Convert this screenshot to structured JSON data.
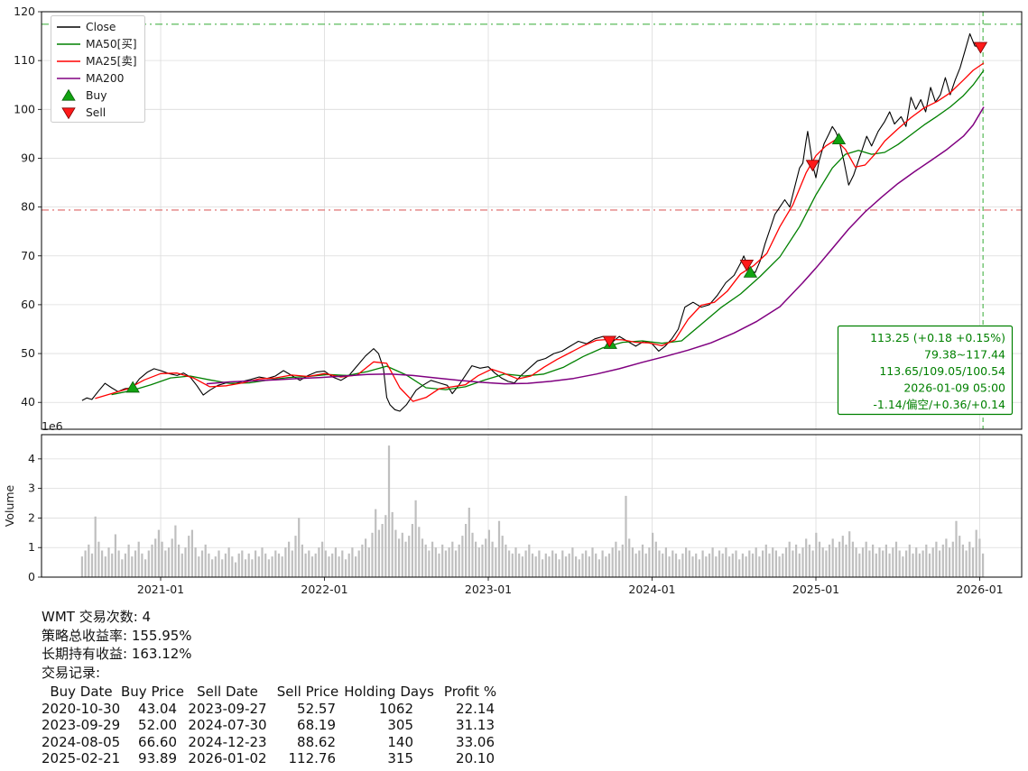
{
  "chart_data": [
    {
      "type": "line",
      "title": "",
      "x_axis": {
        "ticks": [
          2021,
          2022,
          2023,
          2024,
          2025,
          2026
        ],
        "tick_labels": [
          "2021-01",
          "2022-01",
          "2023-01",
          "2024-01",
          "2025-01",
          "2026-01"
        ],
        "range": [
          2020.27,
          2026.26
        ]
      },
      "y_axis": {
        "ticks": [
          40,
          50,
          60,
          70,
          80,
          90,
          100,
          110,
          120
        ],
        "range": [
          34.5,
          120
        ]
      },
      "grid": true,
      "series": [
        {
          "name": "Close",
          "color": "#000000",
          "width": 1.1,
          "x": [
            2020.52,
            2020.55,
            2020.58,
            2020.62,
            2020.66,
            2020.7,
            2020.74,
            2020.78,
            2020.83,
            2020.87,
            2020.92,
            2020.96,
            2021.0,
            2021.05,
            2021.1,
            2021.14,
            2021.18,
            2021.22,
            2021.26,
            2021.3,
            2021.35,
            2021.4,
            2021.45,
            2021.5,
            2021.55,
            2021.6,
            2021.65,
            2021.7,
            2021.75,
            2021.8,
            2021.85,
            2021.9,
            2021.95,
            2022.0,
            2022.05,
            2022.1,
            2022.15,
            2022.2,
            2022.25,
            2022.3,
            2022.33,
            2022.36,
            2022.38,
            2022.4,
            2022.43,
            2022.46,
            2022.5,
            2022.53,
            2022.56,
            2022.6,
            2022.65,
            2022.7,
            2022.75,
            2022.78,
            2022.82,
            2022.86,
            2022.9,
            2022.95,
            2023.0,
            2023.04,
            2023.08,
            2023.12,
            2023.16,
            2023.2,
            2023.25,
            2023.3,
            2023.35,
            2023.4,
            2023.45,
            2023.5,
            2023.55,
            2023.6,
            2023.65,
            2023.7,
            2023.74,
            2023.745,
            2023.8,
            2023.85,
            2023.9,
            2023.95,
            2024.0,
            2024.04,
            2024.08,
            2024.12,
            2024.16,
            2024.2,
            2024.25,
            2024.3,
            2024.35,
            2024.4,
            2024.45,
            2024.5,
            2024.54,
            2024.56,
            2024.58,
            2024.6,
            2024.63,
            2024.66,
            2024.69,
            2024.72,
            2024.75,
            2024.78,
            2024.81,
            2024.84,
            2024.87,
            2024.9,
            2024.92,
            2024.94,
            2024.95,
            2024.97,
            2024.98,
            2025.0,
            2025.02,
            2025.05,
            2025.08,
            2025.1,
            2025.12,
            2025.14,
            2025.17,
            2025.2,
            2025.23,
            2025.27,
            2025.31,
            2025.34,
            2025.38,
            2025.42,
            2025.45,
            2025.48,
            2025.52,
            2025.55,
            2025.58,
            2025.61,
            2025.64,
            2025.67,
            2025.7,
            2025.73,
            2025.76,
            2025.79,
            2025.82,
            2025.85,
            2025.88,
            2025.91,
            2025.94,
            2025.97,
            2026.0,
            2026.025
          ],
          "y": [
            40.4,
            40.9,
            40.6,
            42.3,
            43.9,
            43.0,
            42.2,
            42.8,
            43.0,
            44.8,
            46.2,
            46.9,
            46.5,
            45.9,
            45.5,
            46.0,
            45.2,
            43.5,
            41.5,
            42.5,
            43.5,
            44.0,
            43.8,
            44.3,
            44.7,
            45.2,
            44.9,
            45.4,
            46.5,
            45.5,
            44.5,
            45.5,
            46.2,
            46.4,
            45.2,
            44.5,
            45.5,
            47.5,
            49.5,
            51.0,
            50.0,
            47.0,
            41.0,
            39.5,
            38.5,
            38.2,
            39.5,
            41.0,
            42.5,
            43.5,
            44.5,
            44.0,
            43.5,
            41.8,
            43.5,
            45.5,
            47.5,
            47.0,
            47.3,
            46.0,
            45.0,
            44.3,
            44.0,
            45.5,
            47.0,
            48.5,
            49.0,
            50.0,
            50.5,
            51.5,
            52.5,
            52.0,
            53.0,
            53.5,
            52.6,
            52.0,
            53.5,
            52.5,
            51.5,
            52.5,
            52.0,
            50.5,
            51.5,
            53.0,
            55.0,
            59.5,
            60.5,
            59.5,
            60.0,
            62.0,
            64.5,
            66.0,
            68.5,
            70.0,
            68.2,
            67.0,
            66.6,
            69.0,
            72.5,
            75.5,
            78.5,
            80.0,
            81.5,
            80.0,
            84.0,
            88.0,
            89.0,
            93.5,
            95.5,
            91.0,
            88.6,
            86.0,
            89.5,
            93.0,
            95.0,
            96.5,
            95.5,
            93.89,
            89.5,
            84.5,
            86.5,
            90.5,
            94.5,
            92.5,
            95.5,
            97.5,
            99.5,
            97.0,
            98.5,
            96.5,
            102.5,
            100.0,
            102.0,
            99.5,
            104.5,
            101.5,
            103.0,
            106.5,
            103.0,
            106.0,
            108.5,
            112.0,
            115.5,
            113.0,
            112.8,
            113.25
          ]
        },
        {
          "name": "MA50[买]",
          "color": "#008000",
          "width": 1.3,
          "x": [
            2020.7,
            2020.82,
            2020.94,
            2021.06,
            2021.18,
            2021.3,
            2021.42,
            2021.54,
            2021.66,
            2021.78,
            2021.9,
            2022.02,
            2022.14,
            2022.26,
            2022.38,
            2022.5,
            2022.62,
            2022.74,
            2022.86,
            2022.98,
            2023.1,
            2023.22,
            2023.34,
            2023.46,
            2023.58,
            2023.7,
            2023.82,
            2023.94,
            2024.06,
            2024.18,
            2024.3,
            2024.42,
            2024.54,
            2024.66,
            2024.78,
            2024.9,
            2025.0,
            2025.1,
            2025.18,
            2025.26,
            2025.34,
            2025.42,
            2025.5,
            2025.58,
            2025.66,
            2025.74,
            2025.82,
            2025.9,
            2025.96,
            2026.025
          ],
          "y": [
            41.6,
            42.4,
            43.6,
            45.0,
            45.4,
            44.6,
            43.9,
            44.0,
            44.6,
            45.1,
            45.3,
            45.7,
            45.5,
            46.3,
            47.4,
            45.6,
            43.0,
            42.6,
            43.2,
            44.6,
            45.8,
            45.4,
            45.8,
            47.2,
            49.4,
            51.2,
            52.3,
            52.6,
            52.1,
            52.6,
            56.0,
            59.4,
            62.2,
            65.8,
            69.8,
            76.0,
            82.5,
            88.0,
            90.8,
            91.6,
            90.8,
            91.2,
            92.8,
            94.8,
            96.8,
            98.6,
            100.5,
            102.8,
            105.0,
            108.0
          ]
        },
        {
          "name": "MA25[卖]",
          "color": "#ff0000",
          "width": 1.3,
          "x": [
            2020.6,
            2020.7,
            2020.8,
            2020.9,
            2021.0,
            2021.1,
            2021.2,
            2021.3,
            2021.4,
            2021.5,
            2021.6,
            2021.7,
            2021.8,
            2021.9,
            2022.0,
            2022.1,
            2022.2,
            2022.3,
            2022.38,
            2022.46,
            2022.54,
            2022.62,
            2022.7,
            2022.78,
            2022.86,
            2022.94,
            2023.02,
            2023.1,
            2023.18,
            2023.26,
            2023.34,
            2023.42,
            2023.5,
            2023.58,
            2023.66,
            2023.74,
            2023.82,
            2023.9,
            2023.98,
            2024.06,
            2024.14,
            2024.22,
            2024.3,
            2024.38,
            2024.46,
            2024.54,
            2024.62,
            2024.7,
            2024.78,
            2024.86,
            2024.94,
            2025.0,
            2025.06,
            2025.12,
            2025.18,
            2025.24,
            2025.3,
            2025.36,
            2025.42,
            2025.5,
            2025.58,
            2025.66,
            2025.74,
            2025.82,
            2025.9,
            2025.96,
            2026.025
          ],
          "y": [
            40.8,
            41.8,
            42.8,
            44.6,
            45.9,
            46.0,
            45.0,
            43.2,
            43.4,
            44.0,
            44.8,
            45.0,
            45.6,
            45.3,
            45.9,
            45.2,
            45.6,
            48.3,
            48.0,
            43.0,
            40.2,
            41.0,
            42.8,
            43.2,
            43.6,
            45.5,
            46.8,
            45.9,
            44.8,
            45.4,
            47.2,
            48.8,
            50.2,
            51.6,
            52.7,
            52.9,
            52.8,
            52.3,
            52.2,
            51.6,
            52.8,
            57.0,
            59.9,
            60.5,
            62.8,
            66.3,
            68.0,
            70.5,
            76.0,
            80.5,
            87.0,
            90.5,
            92.5,
            93.8,
            91.8,
            88.2,
            88.6,
            90.8,
            93.5,
            96.0,
            98.3,
            100.3,
            101.6,
            103.4,
            106.0,
            108.0,
            109.5
          ]
        },
        {
          "name": "MA200",
          "color": "#800080",
          "width": 1.5,
          "x": [
            2021.28,
            2021.42,
            2021.56,
            2021.7,
            2021.84,
            2021.98,
            2022.12,
            2022.26,
            2022.4,
            2022.54,
            2022.68,
            2022.82,
            2022.96,
            2023.1,
            2023.24,
            2023.38,
            2023.52,
            2023.66,
            2023.8,
            2023.94,
            2024.08,
            2024.22,
            2024.36,
            2024.5,
            2024.64,
            2024.78,
            2024.92,
            2025.0,
            2025.1,
            2025.2,
            2025.3,
            2025.4,
            2025.5,
            2025.6,
            2025.7,
            2025.8,
            2025.9,
            2025.96,
            2026.025
          ],
          "y": [
            43.8,
            44.2,
            44.4,
            44.6,
            44.9,
            45.1,
            45.4,
            45.7,
            45.8,
            45.5,
            45.0,
            44.5,
            44.1,
            43.8,
            43.9,
            44.3,
            44.9,
            45.8,
            46.9,
            48.2,
            49.4,
            50.7,
            52.2,
            54.2,
            56.6,
            59.6,
            64.5,
            67.5,
            71.5,
            75.5,
            79.0,
            82.0,
            84.8,
            87.2,
            89.5,
            91.8,
            94.5,
            96.8,
            100.5
          ]
        }
      ],
      "markers": {
        "buy": {
          "label": "Buy",
          "color": "#12a312",
          "edge": "#0b5e0b",
          "x": [
            2020.83,
            2023.745,
            2024.6,
            2025.14
          ],
          "y": [
            43.04,
            52.0,
            66.6,
            93.89
          ]
        },
        "sell": {
          "label": "Sell",
          "color": "#ff1a1a",
          "edge": "#7a0000",
          "x": [
            2023.74,
            2024.578,
            2024.98,
            2026.005
          ],
          "y": [
            52.57,
            68.19,
            88.62,
            112.76
          ]
        }
      },
      "hlines": [
        {
          "y": 117.44,
          "color": "#33aa33",
          "style": "dashdot"
        },
        {
          "y": 79.38,
          "color": "#dd6666",
          "style": "dashdot"
        }
      ],
      "vlines": [
        {
          "x": 2026.02,
          "color": "#33aa33",
          "style": "dashed"
        }
      ],
      "legend": [
        {
          "label": "Close",
          "color": "#000000",
          "type": "line"
        },
        {
          "label": "MA50[买]",
          "color": "#008000",
          "type": "line"
        },
        {
          "label": "MA25[卖]",
          "color": "#ff0000",
          "type": "line"
        },
        {
          "label": "MA200",
          "color": "#800080",
          "type": "line"
        },
        {
          "label": "Buy",
          "color": "#12a312",
          "edge": "#0b5e0b",
          "type": "triangle-up"
        },
        {
          "label": "Sell",
          "color": "#ff1a1a",
          "edge": "#7a0000",
          "type": "triangle-down"
        }
      ],
      "info_box": {
        "color": "#008000",
        "lines": [
          "113.25 (+0.18 +0.15%)",
          "79.38~117.44",
          "113.65/109.05/100.54",
          "2026-01-09 05:00",
          "-1.14/偏空/+0.36/+0.14"
        ]
      }
    },
    {
      "type": "bar",
      "name": "volume",
      "ylabel": "Volume",
      "offset_text": "1e6",
      "yticks": [
        0,
        1,
        2,
        3,
        4
      ],
      "ylim": [
        0,
        4.82
      ],
      "bar_color": "#bfbfbf",
      "x_start": 2020.52,
      "x_step": 0.02037,
      "values": [
        0.7,
        0.9,
        1.1,
        0.8,
        2.05,
        1.2,
        0.9,
        0.7,
        1.0,
        0.8,
        1.45,
        0.9,
        0.6,
        0.8,
        1.1,
        0.7,
        0.9,
        1.2,
        0.8,
        0.6,
        0.9,
        1.1,
        1.3,
        1.6,
        1.2,
        0.9,
        1.0,
        1.3,
        1.75,
        1.1,
        0.8,
        1.0,
        1.4,
        1.6,
        1.0,
        0.7,
        0.9,
        1.1,
        0.8,
        0.6,
        0.7,
        0.9,
        0.6,
        0.8,
        1.0,
        0.7,
        0.5,
        0.8,
        0.9,
        0.6,
        0.8,
        0.6,
        0.9,
        0.7,
        1.0,
        0.8,
        0.6,
        0.7,
        0.9,
        0.8,
        0.7,
        1.0,
        1.2,
        0.9,
        1.4,
        2.0,
        1.1,
        0.8,
        0.9,
        0.7,
        0.8,
        1.0,
        1.2,
        0.9,
        0.7,
        0.8,
        1.0,
        0.7,
        0.9,
        0.6,
        0.8,
        1.0,
        0.7,
        0.9,
        1.1,
        1.3,
        1.0,
        1.5,
        2.3,
        1.6,
        1.8,
        2.1,
        4.45,
        2.2,
        1.6,
        1.3,
        1.5,
        1.2,
        1.4,
        1.8,
        2.6,
        1.7,
        1.3,
        1.1,
        0.9,
        1.2,
        1.0,
        0.8,
        1.1,
        0.9,
        1.0,
        1.2,
        0.9,
        1.1,
        1.4,
        1.8,
        2.35,
        1.5,
        1.2,
        1.0,
        1.1,
        1.3,
        1.6,
        1.2,
        1.0,
        1.9,
        1.4,
        1.1,
        0.9,
        0.8,
        1.0,
        0.8,
        0.7,
        0.9,
        1.1,
        0.8,
        0.7,
        0.9,
        0.6,
        0.8,
        0.7,
        0.9,
        0.8,
        0.6,
        0.9,
        0.7,
        0.8,
        1.0,
        0.7,
        0.6,
        0.8,
        0.9,
        0.7,
        1.0,
        0.8,
        0.6,
        0.9,
        0.7,
        0.8,
        1.0,
        1.2,
        0.9,
        1.1,
        2.75,
        1.3,
        1.0,
        0.8,
        0.9,
        1.1,
        0.8,
        1.0,
        1.5,
        1.2,
        0.9,
        0.8,
        1.0,
        0.7,
        0.9,
        0.8,
        0.6,
        0.8,
        1.0,
        0.9,
        0.7,
        0.8,
        0.6,
        0.9,
        0.7,
        0.8,
        1.0,
        0.7,
        0.9,
        0.8,
        1.0,
        0.7,
        0.8,
        0.9,
        0.6,
        0.8,
        0.7,
        0.9,
        0.8,
        1.0,
        0.7,
        0.9,
        1.1,
        0.8,
        1.0,
        0.9,
        0.7,
        0.8,
        1.0,
        1.2,
        0.9,
        1.1,
        0.8,
        1.0,
        1.3,
        1.1,
        0.9,
        1.5,
        1.2,
        1.0,
        0.9,
        1.1,
        1.3,
        1.0,
        1.2,
        1.4,
        1.1,
        1.55,
        1.2,
        1.0,
        0.8,
        1.0,
        1.2,
        0.9,
        1.1,
        0.8,
        1.0,
        0.9,
        1.1,
        0.8,
        1.0,
        1.2,
        0.9,
        0.7,
        0.9,
        1.1,
        0.8,
        1.0,
        0.8,
        0.9,
        1.1,
        0.8,
        1.0,
        1.2,
        0.9,
        1.1,
        1.3,
        1.0,
        1.2,
        1.9,
        1.4,
        1.1,
        0.9,
        1.2,
        1.0,
        1.6,
        1.3,
        0.8
      ]
    }
  ],
  "report": {
    "lines": [
      "WMT 交易次数: 4",
      "策略总收益率: 155.95%",
      "长期持有收益: 163.12%",
      "交易记录:"
    ]
  },
  "trades": {
    "headers": [
      "Buy Date",
      "Buy Price",
      "Sell Date",
      "Sell Price",
      "Holding Days",
      "Profit %"
    ],
    "rows": [
      [
        "2020-10-30",
        "43.04",
        "2023-09-27",
        "52.57",
        "1062",
        "22.14"
      ],
      [
        "2023-09-29",
        "52.00",
        "2024-07-30",
        "68.19",
        "305",
        "31.13"
      ],
      [
        "2024-08-05",
        "66.60",
        "2024-12-23",
        "88.62",
        "140",
        "33.06"
      ],
      [
        "2025-02-21",
        "93.89",
        "2026-01-02",
        "112.76",
        "315",
        "20.10"
      ]
    ]
  }
}
